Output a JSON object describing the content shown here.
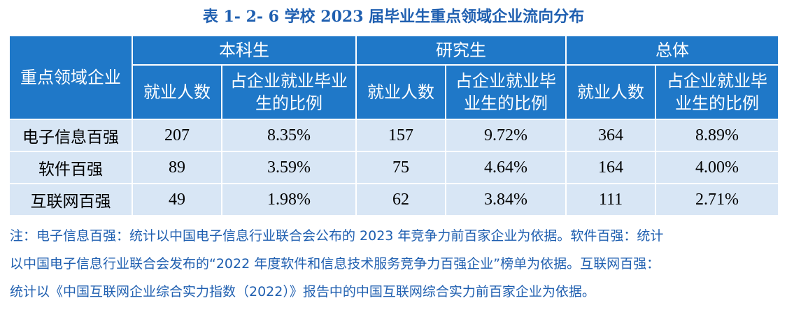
{
  "title": "表 1- 2- 6  学校 2023 届毕业生重点领域企业流向分布",
  "table": {
    "corner_header": "重点领域企业",
    "groups": [
      "本科生",
      "研究生",
      "总体"
    ],
    "sub_headers": [
      "就业人数",
      "占企业就业毕业生的比例"
    ],
    "rows": [
      {
        "name": "电子信息百强",
        "values": [
          "207",
          "8.35%",
          "157",
          "9.72%",
          "364",
          "8.89%"
        ]
      },
      {
        "name": "软件百强",
        "values": [
          "89",
          "3.59%",
          "75",
          "4.64%",
          "164",
          "4.00%"
        ]
      },
      {
        "name": "互联网百强",
        "values": [
          "49",
          "1.98%",
          "62",
          "3.84%",
          "111",
          "2.71%"
        ]
      }
    ]
  },
  "note": {
    "lines": [
      "注：电子信息百强：统计以中国电子信息行业联合会公布的 2023 年竞争力前百家企业为依据。软件百强：统计",
      "以中国电子信息行业联合会发布的“2022 年度软件和信息技术服务竞争力百强企业”榜单为依据。互联网百强：",
      "统计以《中国互联网企业综合实力指数（2022）》报告中的中国互联网综合实力前百家企业为依据。"
    ]
  },
  "colors": {
    "header_bg": "#1f78c8",
    "cell_bg": "#d8e6f5",
    "title_color": "#1f5fb0"
  }
}
